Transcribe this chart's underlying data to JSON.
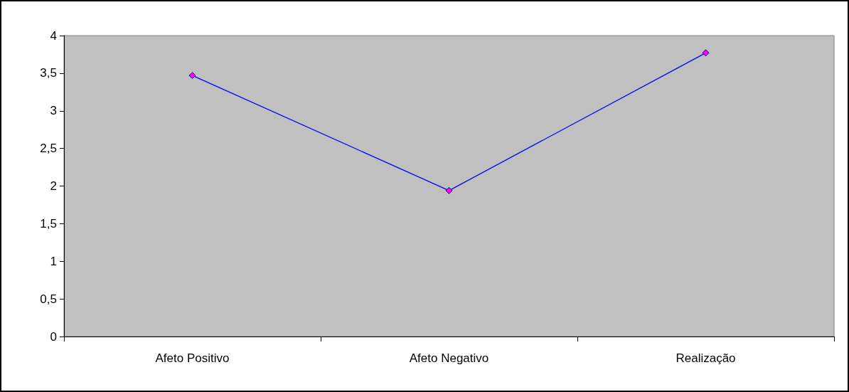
{
  "chart_data": {
    "type": "line",
    "categories": [
      "Afeto Positivo",
      "Afeto Negativo",
      "Realização"
    ],
    "series": [
      {
        "color": "#0000ff",
        "colors": [
          "#ff00ff",
          "#ff00ff",
          "#ff00ff"
        ],
        "values": [
          3.47,
          1.94,
          3.77
        ]
      }
    ],
    "ylim": [
      0,
      4
    ],
    "yticks": [
      0,
      {
        "value": 0.5,
        "label": "0,5"
      },
      1,
      {
        "value": 1.5,
        "label": "1,5"
      },
      2,
      {
        "value": 2.5,
        "label": "2,5"
      },
      3,
      {
        "value": 3.5,
        "label": "3,5"
      },
      4
    ],
    "grid": false,
    "marker": "diamond",
    "line_style": "solid"
  }
}
